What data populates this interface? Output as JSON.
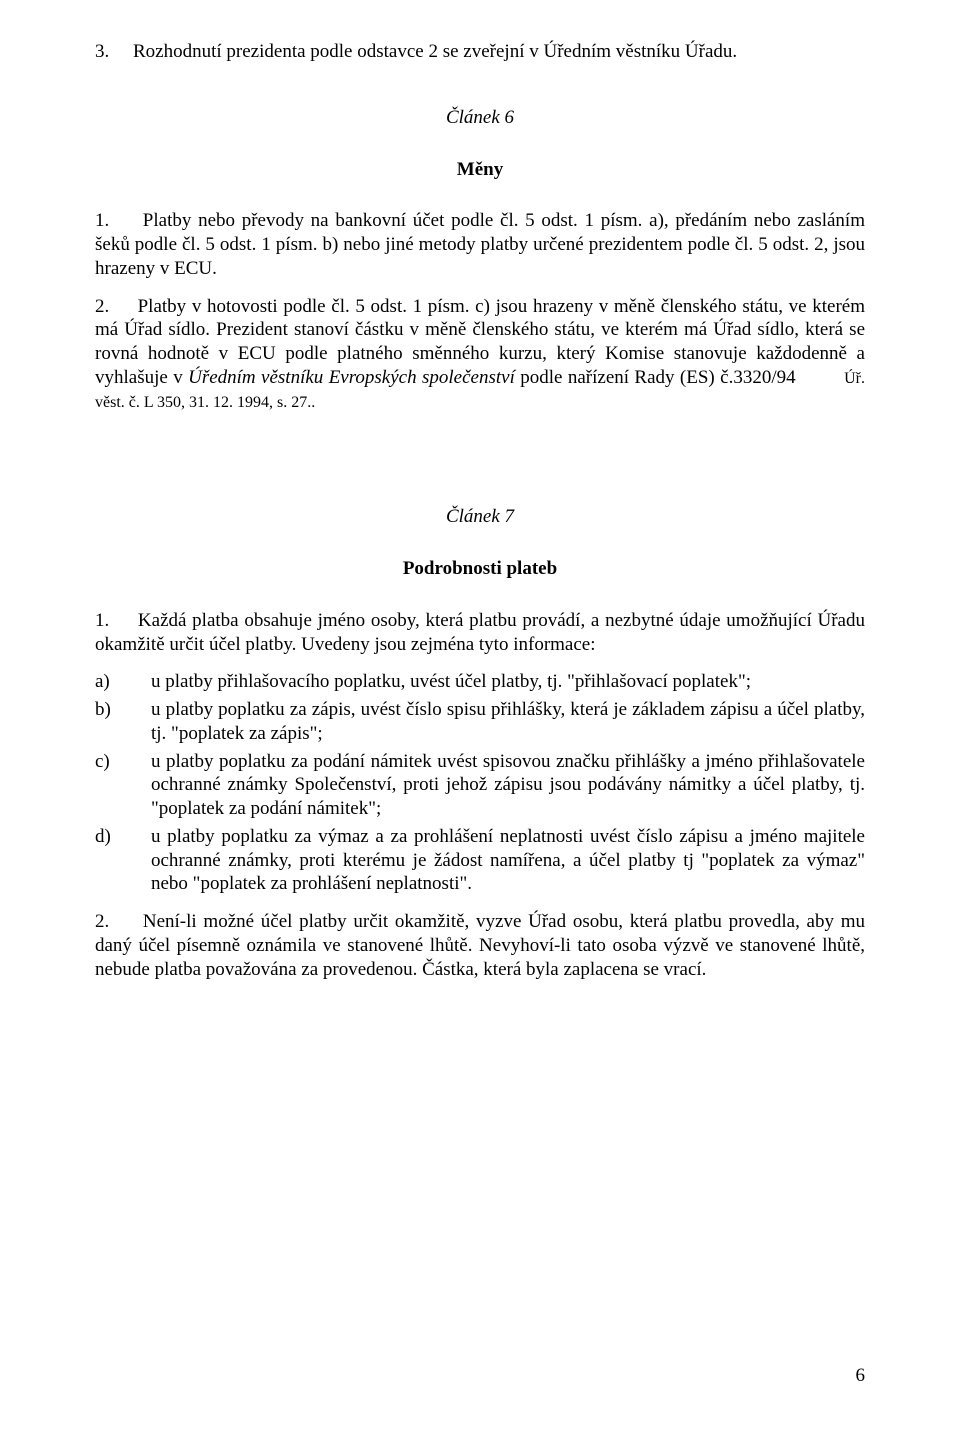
{
  "para1": {
    "num": "3.",
    "text": "Rozhodnutí prezidenta podle odstavce 2 se zveřejní v Úředním věstníku Úřadu."
  },
  "article6": {
    "label": "Článek 6",
    "title": "Měny"
  },
  "para2": {
    "num": "1.",
    "text": "Platby nebo převody na bankovní účet podle čl. 5 odst. 1 písm. a), předáním nebo zasláním šeků podle čl. 5 odst. 1 písm. b) nebo jiné metody platby určené prezidentem podle čl. 5 odst. 2, jsou hrazeny v ECU."
  },
  "para3": {
    "num": "2.",
    "text_before_italic": "Platby v hotovosti podle čl. 5 odst. 1 písm. c) jsou hrazeny v měně členského státu, ve kterém má Úřad sídlo. Prezident stanoví částku v měně členského státu, ve kterém má Úřad sídlo, která se rovná hodnotě v ECU podle platného směnného kurzu, který Komise stanovuje každodenně a vyhlašuje v ",
    "italic": "Úředním věstníku Evropských společenství",
    "text_after_italic": " podle nařízení Rady (ES) č.3320/94",
    "footnote_ref": "Úř. věst. č. L 350, 31. 12. 1994, s. 27.."
  },
  "article7": {
    "label": "Článek 7",
    "title": "Podrobnosti plateb"
  },
  "para4": {
    "num": "1.",
    "text": "Každá platba obsahuje jméno osoby, která platbu provádí, a nezbytné údaje umožňující Úřadu okamžitě určit účel platby. Uvedeny jsou zejména tyto informace:"
  },
  "list": {
    "a": {
      "marker": "a)",
      "text": "u platby přihlašovacího poplatku, uvést účel platby, tj. \"přihlašovací poplatek\";"
    },
    "b": {
      "marker": "b)",
      "text": "u platby poplatku za zápis, uvést číslo spisu přihlášky, která je základem zápisu a účel platby, tj. \"poplatek za zápis\";"
    },
    "c": {
      "marker": "c)",
      "text": "u platby poplatku za podání námitek uvést spisovou značku přihlášky a jméno přihlašovatele ochranné známky Společenství, proti jehož zápisu jsou podávány námitky a účel platby, tj. \"poplatek za podání námitek\";"
    },
    "d": {
      "marker": "d)",
      "text": "u platby poplatku za výmaz a za prohlášení neplatnosti uvést číslo zápisu a jméno majitele ochranné známky, proti kterému je žádost namířena, a účel platby tj \"poplatek za výmaz\" nebo \"poplatek za prohlášení neplatnosti\"."
    }
  },
  "para5": {
    "num": "2.",
    "text": "Není-li možné účel platby určit okamžitě, vyzve Úřad osobu, která platbu provedla, aby mu daný účel    písemně oznámila ve stanovené lhůtě. Nevyhoví-li tato osoba výzvě ve stanovené lhůtě, nebude platba považována za provedenou. Částka, která byla zaplacena se vrací."
  },
  "page_number": "6"
}
